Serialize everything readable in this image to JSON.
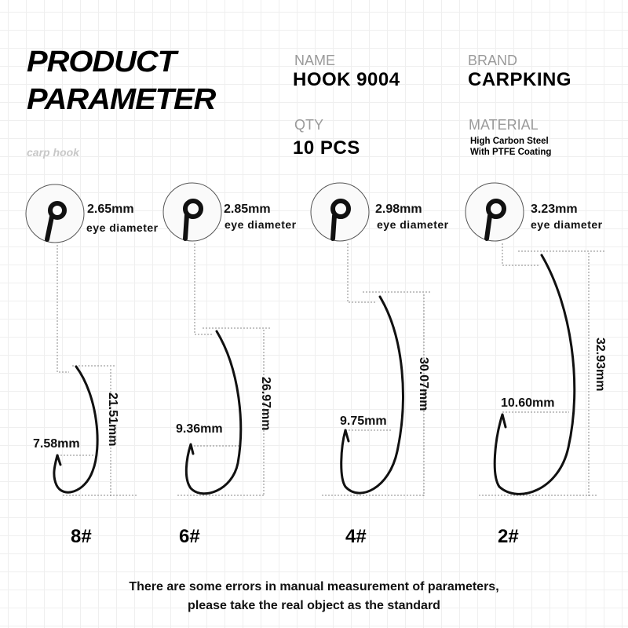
{
  "header": {
    "title_line1": "PRODUCT",
    "title_line2": "PARAMETER",
    "subtitle": "carp hook"
  },
  "specs": {
    "name_label": "NAME",
    "name_value": "HOOK 9004",
    "brand_label": "BRAND",
    "brand_value": "CARPKING",
    "qty_label": "QTY",
    "qty_value": "10 PCS",
    "material_label": "MATERIAL",
    "material_line1": "High Carbon Steel",
    "material_line2": "With PTFE Coating"
  },
  "hooks": [
    {
      "size": "8#",
      "eye": "2.65mm",
      "eye_label": "eye diameter",
      "length": "21.51mm",
      "gap": "7.58mm"
    },
    {
      "size": "6#",
      "eye": "2.85mm",
      "eye_label": "eye diameter",
      "length": "26.97mm",
      "gap": "9.36mm"
    },
    {
      "size": "4#",
      "eye": "2.98mm",
      "eye_label": "eye diameter",
      "length": "30.07mm",
      "gap": "9.75mm"
    },
    {
      "size": "2#",
      "eye": "3.23mm",
      "eye_label": "eye diameter",
      "length": "32.93mm",
      "gap": "10.60mm"
    }
  ],
  "footer": {
    "line1": "There are some errors in manual measurement of parameters,",
    "line2": "please take the real object as the standard"
  },
  "colors": {
    "hook": "#111111",
    "label_gray": "#9a9a9a",
    "grid": "#efefef"
  }
}
